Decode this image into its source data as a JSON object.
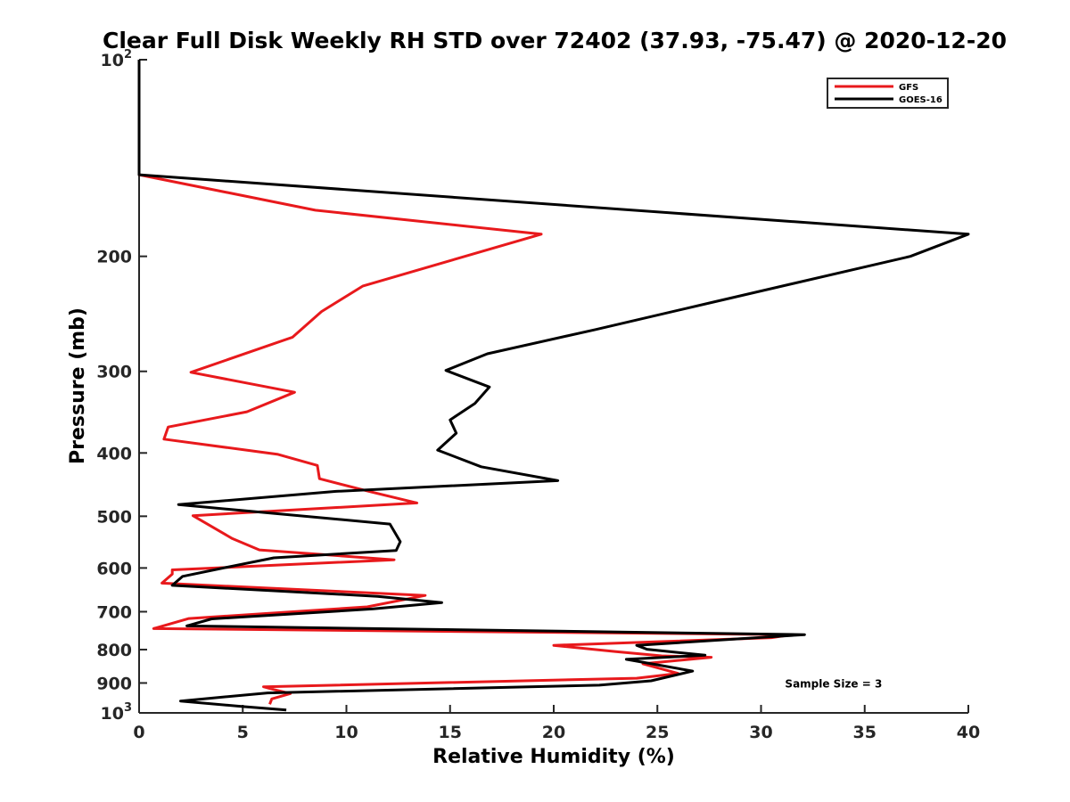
{
  "chart_data": {
    "type": "line",
    "title": "Clear Full Disk Weekly RH STD over 72402 (37.93, -75.47) @ 2020-12-20",
    "xlabel": "Relative Humidity (%)",
    "ylabel": "Pressure (mb)",
    "xlim": [
      0,
      40
    ],
    "ylim": [
      100,
      1000
    ],
    "yscale": "log",
    "y_reversed": true,
    "grid": false,
    "legend_position": "top-right",
    "x_ticks": [
      {
        "value": 0,
        "label": "0"
      },
      {
        "value": 5,
        "label": "5"
      },
      {
        "value": 10,
        "label": "10"
      },
      {
        "value": 15,
        "label": "15"
      },
      {
        "value": 20,
        "label": "20"
      },
      {
        "value": 25,
        "label": "25"
      },
      {
        "value": 30,
        "label": "30"
      },
      {
        "value": 35,
        "label": "35"
      },
      {
        "value": 40,
        "label": "40"
      }
    ],
    "y_ticks": [
      {
        "value": 100,
        "label": "10",
        "exponent": "2"
      },
      {
        "value": 200,
        "label": "200"
      },
      {
        "value": 300,
        "label": "300"
      },
      {
        "value": 400,
        "label": "400"
      },
      {
        "value": 500,
        "label": "500"
      },
      {
        "value": 600,
        "label": "600"
      },
      {
        "value": 700,
        "label": "700"
      },
      {
        "value": 800,
        "label": "800"
      },
      {
        "value": 900,
        "label": "900"
      },
      {
        "value": 1000,
        "label": "10",
        "exponent": "3"
      }
    ],
    "series": [
      {
        "name": "GFS",
        "color": "#e8191c",
        "points": [
          [
            0,
            100
          ],
          [
            0,
            150
          ],
          [
            8.5,
            170
          ],
          [
            19.4,
            185
          ],
          [
            10.8,
            222
          ],
          [
            8.8,
            243
          ],
          [
            7.4,
            266
          ],
          [
            2.5,
            301
          ],
          [
            7.5,
            323
          ],
          [
            5.2,
            346
          ],
          [
            1.4,
            365
          ],
          [
            1.2,
            381
          ],
          [
            6.7,
            402
          ],
          [
            8.6,
            418
          ],
          [
            8.7,
            438
          ],
          [
            11.2,
            459
          ],
          [
            13.4,
            477
          ],
          [
            2.6,
            499
          ],
          [
            4.5,
            541
          ],
          [
            5.8,
            563
          ],
          [
            12.3,
            583
          ],
          [
            1.6,
            604
          ],
          [
            1.6,
            613
          ],
          [
            1.1,
            633
          ],
          [
            13.8,
            661
          ],
          [
            11.0,
            688
          ],
          [
            2.4,
            717
          ],
          [
            0.7,
            743
          ],
          [
            31.5,
            759
          ],
          [
            30.5,
            767
          ],
          [
            20.0,
            788
          ],
          [
            23.0,
            806
          ],
          [
            25.2,
            818
          ],
          [
            27.6,
            822
          ],
          [
            24.3,
            841
          ],
          [
            26.0,
            870
          ],
          [
            24.0,
            885
          ],
          [
            6.0,
            912
          ],
          [
            6.5,
            921
          ],
          [
            7.3,
            934
          ],
          [
            6.4,
            952
          ],
          [
            6.3,
            970
          ]
        ]
      },
      {
        "name": "GOES-16",
        "color": "#000000",
        "points": [
          [
            0,
            100
          ],
          [
            0,
            150
          ],
          [
            40.0,
            185
          ],
          [
            37.2,
            200
          ],
          [
            27.7,
            235
          ],
          [
            22.0,
            259
          ],
          [
            16.8,
            282
          ],
          [
            14.8,
            299
          ],
          [
            16.9,
            317
          ],
          [
            16.2,
            336
          ],
          [
            15.0,
            356
          ],
          [
            15.3,
            373
          ],
          [
            14.4,
            396
          ],
          [
            16.5,
            420
          ],
          [
            20.2,
            441
          ],
          [
            9.5,
            458
          ],
          [
            1.9,
            480
          ],
          [
            12.1,
            514
          ],
          [
            12.6,
            547
          ],
          [
            12.4,
            564
          ],
          [
            6.5,
            579
          ],
          [
            4.5,
            596
          ],
          [
            2.1,
            618
          ],
          [
            1.6,
            638
          ],
          [
            11.5,
            663
          ],
          [
            14.6,
            678
          ],
          [
            11.3,
            693
          ],
          [
            3.5,
            718
          ],
          [
            2.3,
            736
          ],
          [
            32.1,
            759
          ],
          [
            24.0,
            788
          ],
          [
            24.5,
            799
          ],
          [
            27.3,
            816
          ],
          [
            23.5,
            828
          ],
          [
            26.7,
            863
          ],
          [
            24.7,
            893
          ],
          [
            22.2,
            907
          ],
          [
            6.2,
            932
          ],
          [
            2.0,
            959
          ],
          [
            5.0,
            978
          ],
          [
            7.1,
            990
          ]
        ]
      }
    ],
    "annotations": [
      {
        "text": "Sample Size = 3",
        "x": 33.5,
        "y": 900
      }
    ]
  }
}
